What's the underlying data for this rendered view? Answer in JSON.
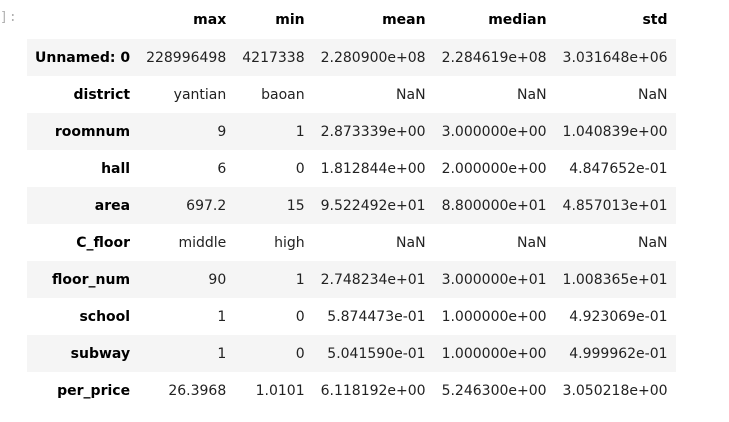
{
  "prompt": "]:",
  "columns": [
    "",
    "max",
    "min",
    "mean",
    "median",
    "std"
  ],
  "rows": [
    {
      "name": "Unnamed: 0",
      "values": [
        "228996498",
        "4217338",
        "2.280900e+08",
        "2.284619e+08",
        "3.031648e+06"
      ]
    },
    {
      "name": "district",
      "values": [
        "yantian",
        "baoan",
        "NaN",
        "NaN",
        "NaN"
      ]
    },
    {
      "name": "roomnum",
      "values": [
        "9",
        "1",
        "2.873339e+00",
        "3.000000e+00",
        "1.040839e+00"
      ]
    },
    {
      "name": "hall",
      "values": [
        "6",
        "0",
        "1.812844e+00",
        "2.000000e+00",
        "4.847652e-01"
      ]
    },
    {
      "name": "area",
      "values": [
        "697.2",
        "15",
        "9.522492e+01",
        "8.800000e+01",
        "4.857013e+01"
      ]
    },
    {
      "name": "C_floor",
      "values": [
        "middle",
        "high",
        "NaN",
        "NaN",
        "NaN"
      ]
    },
    {
      "name": "floor_num",
      "values": [
        "90",
        "1",
        "2.748234e+01",
        "3.000000e+01",
        "1.008365e+01"
      ]
    },
    {
      "name": "school",
      "values": [
        "1",
        "0",
        "5.874473e-01",
        "1.000000e+00",
        "4.923069e-01"
      ]
    },
    {
      "name": "subway",
      "values": [
        "1",
        "0",
        "5.041590e-01",
        "1.000000e+00",
        "4.999962e-01"
      ]
    },
    {
      "name": "per_price",
      "values": [
        "26.3968",
        "1.0101",
        "6.118192e+00",
        "5.246300e+00",
        "3.050218e+00"
      ]
    }
  ]
}
